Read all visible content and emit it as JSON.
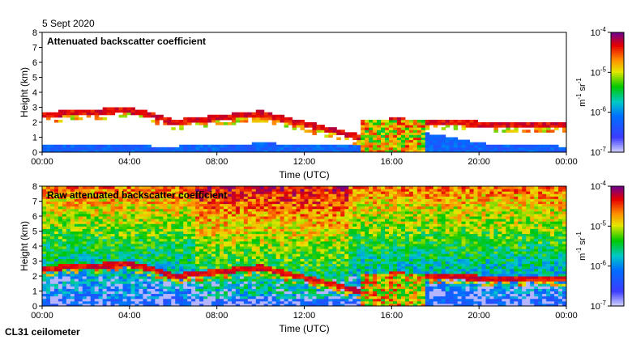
{
  "figure": {
    "date": "5 Sept 2020",
    "instrument": "CL31 ceilometer"
  },
  "chart_data": [
    {
      "type": "heatmap",
      "title": "Attenuated backscatter coefficient",
      "xlabel": "Time (UTC)",
      "ylabel": "Height (km)",
      "xlim": [
        0,
        24
      ],
      "ylim": [
        0,
        8
      ],
      "x_ticks": [
        "00:00",
        "04:00",
        "08:00",
        "12:00",
        "16:00",
        "20:00",
        "00:00"
      ],
      "y_ticks": [
        "0",
        "1",
        "2",
        "3",
        "4",
        "5",
        "6",
        "7",
        "8"
      ],
      "colorbar": {
        "label": "m-1 sr-1",
        "label_main": "m",
        "label_exp1": "-1",
        "label_mid": " sr",
        "label_exp2": "-1",
        "ticks": [
          {
            "base": "10",
            "exp": "-4"
          },
          {
            "base": "10",
            "exp": "-5"
          },
          {
            "base": "10",
            "exp": "-6"
          },
          {
            "base": "10",
            "exp": "-7"
          }
        ],
        "range_log10": [
          -7,
          -4
        ]
      },
      "features": {
        "cloud_layer_km": [
          [
            0,
            2.5
          ],
          [
            2,
            2.7
          ],
          [
            4,
            2.8
          ],
          [
            5,
            2.5
          ],
          [
            6,
            2.0
          ],
          [
            8,
            2.3
          ],
          [
            10,
            2.6
          ],
          [
            12,
            1.9
          ],
          [
            13.5,
            1.4
          ],
          [
            14.5,
            1.0
          ],
          [
            16,
            2.1
          ],
          [
            18,
            2.0
          ],
          [
            20,
            1.9
          ],
          [
            24,
            1.8
          ]
        ],
        "boundary_layer_km": [
          [
            0,
            0.5
          ],
          [
            6,
            0.4
          ],
          [
            10,
            0.6
          ],
          [
            14,
            0.5
          ],
          [
            16,
            1.5
          ],
          [
            18,
            1.2
          ],
          [
            20,
            0.6
          ],
          [
            24,
            0.4
          ]
        ],
        "noise_level": 0
      }
    },
    {
      "type": "heatmap",
      "title": "Raw attenuated backscatter coefficient",
      "xlabel": "Time (UTC)",
      "ylabel": "Height (km)",
      "xlim": [
        0,
        24
      ],
      "ylim": [
        0,
        8
      ],
      "x_ticks": [
        "00:00",
        "04:00",
        "08:00",
        "12:00",
        "16:00",
        "20:00",
        "00:00"
      ],
      "y_ticks": [
        "0",
        "1",
        "2",
        "3",
        "4",
        "5",
        "6",
        "7",
        "8"
      ],
      "colorbar": {
        "label": "m-1 sr-1",
        "label_main": "m",
        "label_exp1": "-1",
        "label_mid": " sr",
        "label_exp2": "-1",
        "ticks": [
          {
            "base": "10",
            "exp": "-4"
          },
          {
            "base": "10",
            "exp": "-5"
          },
          {
            "base": "10",
            "exp": "-6"
          },
          {
            "base": "10",
            "exp": "-7"
          }
        ],
        "range_log10": [
          -7,
          -4
        ]
      },
      "features": {
        "cloud_layer_km": [
          [
            0,
            2.5
          ],
          [
            2,
            2.7
          ],
          [
            4,
            2.8
          ],
          [
            5,
            2.5
          ],
          [
            6,
            2.0
          ],
          [
            8,
            2.3
          ],
          [
            10,
            2.6
          ],
          [
            12,
            1.9
          ],
          [
            13.5,
            1.4
          ],
          [
            14.5,
            1.0
          ],
          [
            16,
            2.1
          ],
          [
            18,
            2.0
          ],
          [
            20,
            1.9
          ],
          [
            24,
            1.8
          ]
        ],
        "boundary_layer_km": [
          [
            0,
            0.5
          ],
          [
            6,
            0.4
          ],
          [
            10,
            0.6
          ],
          [
            14,
            0.5
          ],
          [
            16,
            1.5
          ],
          [
            18,
            1.2
          ],
          [
            20,
            0.6
          ],
          [
            24,
            0.4
          ]
        ],
        "noise_level": 1
      }
    }
  ]
}
